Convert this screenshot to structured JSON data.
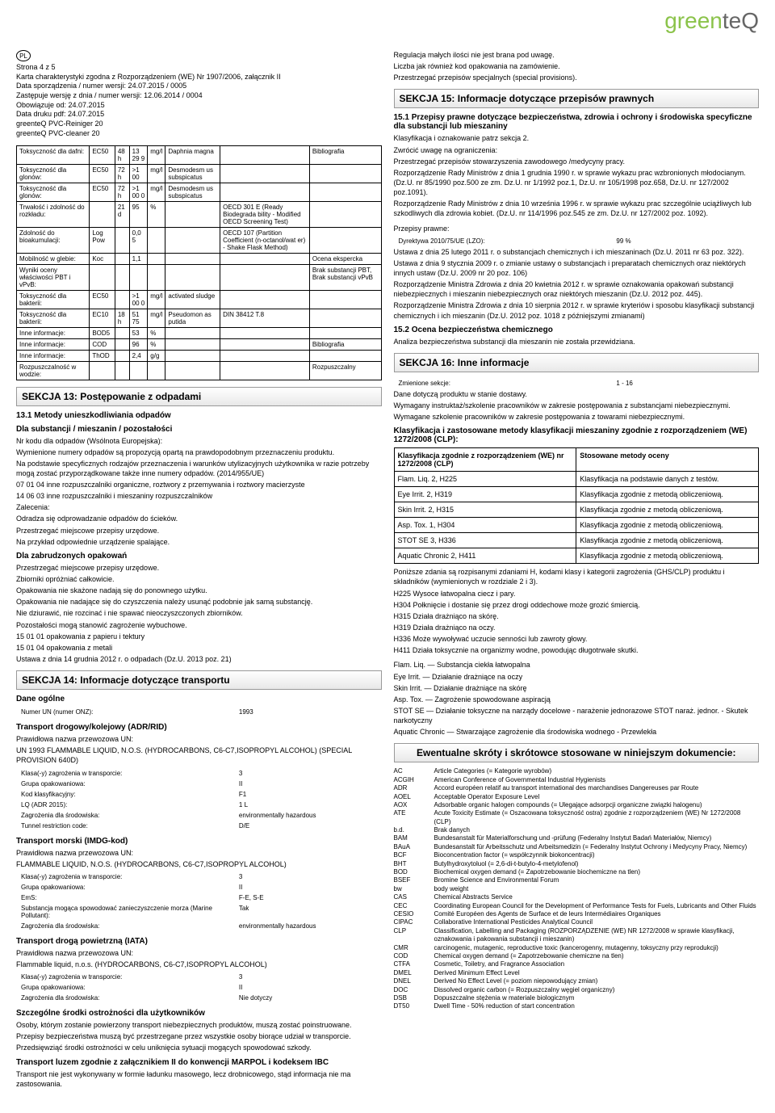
{
  "logo": {
    "green": "green",
    "teq": "teQ"
  },
  "meta": {
    "badge": "PL",
    "page": "Strona  4 z 5",
    "l1": "Karta charakterystyki zgodna z Rozporządzeniem (WE) Nr 1907/2006, załącznik II",
    "l2": "Data sporządzenia / numer wersji: 24.07.2015  / 0005",
    "l3": "Zastępuje wersję z dnia / numer wersji: 12.06.2014  / 0004",
    "l4": "Obowiązuje od: 24.07.2015",
    "l5": "Data druku pdf: 24.07.2015",
    "l6": "greenteQ PVC-Reiniger 20",
    "l7": "greenteQ PVC-cleaner 20"
  },
  "tox_rows": [
    [
      "Toksyczność dla dafni:",
      "EC50",
      "48 h",
      "13 29 9",
      "mg/l",
      "Daphnia magna",
      "",
      "Bibliografia"
    ],
    [
      "Toksyczność dla glonów:",
      "EC50",
      "72 h",
      ">1 00",
      "mg/l",
      "Desmodesm us subspicatus",
      "",
      ""
    ],
    [
      "Toksyczność dla glonów:",
      "EC50",
      "72 h",
      ">1 00 0",
      "mg/l",
      "Desmodesm us subspicatus",
      "",
      ""
    ],
    [
      "Trwałość i zdolność do rozkładu:",
      "",
      "21 d",
      "95",
      "%",
      "",
      "OECD 301 E (Ready Biodegrada bility - Modified OECD Screening Test)",
      ""
    ],
    [
      "Zdolność do bioakumulacji:",
      "Log Pow",
      "",
      "0,0 5",
      "",
      "",
      "OECD 107 (Partition Coefficient (n-octanol/wat er) - Shake Flask Method)",
      ""
    ],
    [
      "Mobilność w glebie:",
      "Koc",
      "",
      "1,1",
      "",
      "",
      "",
      "Ocena ekspercka"
    ],
    [
      "Wyniki oceny właściwości PBT i vPvB:",
      "",
      "",
      "",
      "",
      "",
      "",
      "Brak substancji PBT, Brak substancji vPvB"
    ],
    [
      "Toksyczność dla bakterii:",
      "EC50",
      "",
      ">1 00 0",
      "mg/l",
      "activated sludge",
      "",
      ""
    ],
    [
      "Toksyczność dla bakterii:",
      "EC10",
      "18 h",
      "51 75",
      "mg/l",
      "Pseudomon as putida",
      "DIN 38412 T.8",
      ""
    ],
    [
      "Inne informacje:",
      "BOD5",
      "",
      "53",
      "%",
      "",
      "",
      ""
    ],
    [
      "Inne informacje:",
      "COD",
      "",
      "96",
      "%",
      "",
      "",
      "Bibliografia"
    ],
    [
      "Inne informacje:",
      "ThOD",
      "",
      "2,4",
      "g/g",
      "",
      "",
      ""
    ],
    [
      "Rozpuszczalność w wodzie:",
      "",
      "",
      "",
      "",
      "",
      "",
      "Rozpuszczalny"
    ]
  ],
  "s13": {
    "hdr": "SEKCJA 13: Postępowanie z odpadami",
    "sub": "13.1 Metody unieszkodliwiania odpadów",
    "sub2": "Dla substancji / mieszanin / pozostałości",
    "lines": [
      "Nr kodu dla odpadów (Wsólnota Europejska):",
      "Wymienione numery odpadów są propozycją opartą na prawdopodobnym przeznaczeniu produktu.",
      "Na podstawie specyficznych rodzajów przeznaczenia i warunków utylizacyjnych użytkownika w razie potrzeby mogą zostać przyporządkowane także inne numery odpadów. (2014/955/UE)",
      "07 01 04 inne rozpuszczalniki organiczne, roztwory z przemywania i roztwory macierzyste",
      "14 06 03 inne rozpuszczalniki i mieszaniny rozpuszczalników",
      "Zalecenia:",
      "Odradza się odprowadzanie odpadów do ścieków.",
      "Przestrzegać miejscowe przepisy urzędowe.",
      "Na przykład odpowiednie urządzenie spalające."
    ],
    "sub3": "Dla zabrudzonych opakowań",
    "lines2": [
      "Przestrzegać miejscowe przepisy urzędowe.",
      "Zbiorniki opróżniać całkowicie.",
      "Opakowania nie skażone nadają się do ponownego użytku.",
      "Opakowania nie nadające się do czyszczenia należy usunąć podobnie jak samą substancję.",
      "Nie dziurawić, nie rozcinać i nie spawać nieoczyszczonych zbiorników.",
      "Pozostałości mogą stanowić zagrożenie wybuchowe.",
      "15 01 01 opakowania z papieru i tektury",
      "15 01 04 opakowania z metali",
      "",
      "Ustawa z dnia 14 grudnia 2012 r. o odpadach (Dz.U. 2013 poz. 21)"
    ]
  },
  "s14": {
    "hdr": "SEKCJA 14: Informacje dotyczące transportu",
    "sub_general": "Dane ogólne",
    "un_label": "Numer UN (numer ONZ):",
    "un_val": "1993",
    "adr_hdr": "Transport drogowy/kolejowy (ADR/RID)",
    "adr_name_label": "Prawidłowa nazwa przewozowa UN:",
    "adr_name": "UN 1993   FLAMMABLE LIQUID, N.O.S. (HYDROCARBONS, C6-C7,ISOPROPYL ALCOHOL) (SPECIAL PROVISION 640D)",
    "adr_rows": [
      [
        "Klasa(-y) zagrożenia w transporcie:",
        "3"
      ],
      [
        "Grupa opakowaniowa:",
        "II"
      ],
      [
        "Kod klasyfikacyjny:",
        "F1"
      ],
      [
        "LQ (ADR 2015):",
        "1 L"
      ],
      [
        "Zagrożenia dla środowiska:",
        "environmentally hazardous"
      ],
      [
        "Tunnel restriction code:",
        "D/E"
      ]
    ],
    "imdg_hdr": "Transport morski (IMDG-kod)",
    "imdg_name_label": "Prawidłowa nazwa przewozowa UN:",
    "imdg_name": "FLAMMABLE LIQUID, N.O.S. (HYDROCARBONS, C6-C7,ISOPROPYL ALCOHOL)",
    "imdg_rows": [
      [
        "Klasa(-y) zagrożenia w transporcie:",
        "3"
      ],
      [
        "Grupa opakowaniowa:",
        "II"
      ],
      [
        "EmS:",
        "F-E, S-E"
      ],
      [
        "Substancja mogąca spowodować zanieczyszczenie morza (Marine Pollutant):",
        "Tak"
      ],
      [
        "Zagrożenia dla środowiska:",
        "environmentally hazardous"
      ]
    ],
    "iata_hdr": "Transport drogą powietrzną (IATA)",
    "iata_name_label": "Prawidłowa nazwa przewozowa UN:",
    "iata_name": "Flammable liquid, n.o.s. (HYDROCARBONS, C6-C7,ISOPROPYL ALCOHOL)",
    "iata_rows": [
      [
        "Klasa(-y) zagrożenia w transporcie:",
        "3"
      ],
      [
        "Grupa opakowaniowa:",
        "II"
      ],
      [
        "Zagrożenia dla środowiska:",
        "Nie dotyczy"
      ]
    ],
    "special_hdr": "Szczególne środki ostrożności dla użytkowników",
    "special_lines": [
      "Osoby, którym zostanie powierzony transport niebezpiecznych produktów, muszą zostać poinstruowane.",
      "Przepisy bezpieczeństwa muszą być przestrzegane przez wszystkie osoby biorące udział w transporcie.",
      "Przedsięwziąć środki ostrożności w celu uniknięcia sytuacji mogących spowodować szkody."
    ],
    "marpol_hdr": "Transport luzem zgodnie z załącznikiem II do konwencji MARPOL i kodeksem IBC",
    "marpol_txt": "Transport nie jest wykonywany w formie ładunku masowego, lecz drobnicowego, stąd informacja nie ma zastosowania."
  },
  "right_intro": [
    "Regulacja małych ilości nie jest brana pod uwagę.",
    "Liczba jak również kod opakowania na zamówienie.",
    "Przestrzegać przepisów specjalnych (special provisions)."
  ],
  "s15": {
    "hdr": "SEKCJA 15: Informacje dotyczące przepisów prawnych",
    "sub1": "15.1 Przepisy prawne dotyczące bezpieczeństwa, zdrowia i ochrony i środowiska specyficzne dla substancji lub mieszaniny",
    "lines1": [
      "Klasyfikacja i oznakowanie patrz sekcja 2.",
      "Zwrócić uwagę na ograniczenia:",
      "Przestrzegać przepisów stowarzyszenia zawodowego /medycyny pracy.",
      "Rozporządzenie Rady Ministrów z dnia 1 grudnia 1990 r. w sprawie wykazu prac wzbronionych młodocianym. (Dz.U. nr 85/1990 poz.500 ze zm. Dz.U. nr 1/1992 poz.1, Dz.U. nr 105/1998 poz.658, Dz.U. nr 127/2002 poz.1091).",
      "Rozporządzenie Rady Ministrów z dnia 10 września 1996 r. w sprawie wykazu prac szczególnie uciążliwych lub szkodliwych dla zdrowia kobiet. (Dz.U. nr 114/1996 poz.545 ze zm. Dz.U. nr 127/2002 poz. 1092)."
    ],
    "przepisy_label": "Przepisy prawne:",
    "dyrektywa": "Dyrektywa 2010/75/UE (LZO):",
    "dyrektywa_val": "99 %",
    "lines2": [
      "Ustawa z dnia 25 lutego 2011 r. o substancjach chemicznych i ich mieszaninach (Dz.U. 2011 nr 63 poz. 322).",
      "Ustawa z dnia 9 stycznia 2009 r. o zmianie ustawy o substancjach i preparatach chemicznych oraz niektórych innych ustaw (Dz.U. 2009 nr 20 poz. 106)",
      "Rozporządzenie Ministra Zdrowia z dnia 20 kwietnia 2012 r. w sprawie oznakowania opakowań substancji niebezpiecznych i mieszanin niebezpiecznych oraz niektórych mieszanin (Dz.U. 2012 poz. 445).",
      "Rozporządzenie Ministra Zdrowia z dnia 10 sierpnia 2012 r. w sprawie kryteriów i sposobu klasyfikacji substancji chemicznych i ich mieszanin (Dz.U. 2012 poz. 1018 z późniejszymi zmianami)"
    ],
    "sub2": "15.2 Ocena bezpieczeństwa chemicznego",
    "txt2": "Analiza bezpieczeństwa substancji dla mieszanin nie została przewidziana."
  },
  "s16": {
    "hdr": "SEKCJA 16: Inne informacje",
    "sekcje_label": "Zmienione sekcje:",
    "sekcje_val": "1 - 16",
    "lines1": [
      "Dane dotyczą produktu w stanie dostawy.",
      "Wymagany instruktaż/szkolenie pracowników w zakresie postępowania z substancjami niebezpiecznymi.",
      "Wymagane szkolenie pracowników w zakresie postępowania z towarami niebezpiecznymi."
    ],
    "clp_sub": "Klasyfikacja i zastosowane metody klasyfikacji mieszaniny zgodnie z rozporządzeniem (WE) 1272/2008 (CLP):",
    "clp_hdr1": "Klasyfikacja zgodnie z rozporządzeniem (WE) nr 1272/2008 (CLP)",
    "clp_hdr2": "Stosowane metody oceny",
    "clp_rows": [
      [
        "Flam. Liq. 2, H225",
        "Klasyfikacja na podstawie danych z testów."
      ],
      [
        "Eye Irrit. 2, H319",
        "Klasyfikacja zgodnie z metodą obliczeniową."
      ],
      [
        "Skin Irrit. 2, H315",
        "Klasyfikacja zgodnie z metodą obliczeniową."
      ],
      [
        "Asp. Tox. 1, H304",
        "Klasyfikacja zgodnie z metodą obliczeniową."
      ],
      [
        "STOT SE 3, H336",
        "Klasyfikacja zgodnie z metodą obliczeniową."
      ],
      [
        "Aquatic Chronic 2, H411",
        "Klasyfikacja zgodnie z metodą obliczeniową."
      ]
    ],
    "post_clp": [
      "Poniższe zdania są rozpisanymi zdaniami H, kodami klasy i kategorii zagrożenia (GHS/CLP) produktu i składników (wymienionych w rozdziale 2 i 3).",
      "H225 Wysoce łatwopalna ciecz i pary.",
      "H304 Połknięcie i dostanie się przez drogi oddechowe może grozić śmiercią.",
      "H315 Działa drażniąco na skórę.",
      "H319 Działa drażniąco na oczy.",
      "H336 Może wywoływać uczucie senności lub zawroty głowy.",
      "H411 Działa toksycznie na organizmy wodne, powodując długotrwałe skutki."
    ],
    "defs": [
      "Flam. Liq. — Substancja ciekła łatwopalna",
      "Eye Irrit. — Działanie drażniące na oczy",
      "Skin Irrit. — Działanie drażniące na skórę",
      "Asp. Tox. — Zagrożenie spowodowane aspiracją",
      "STOT SE — Działanie toksyczne na narządy docelowe - narażenie jednorazowe STOT naraż. jednor. - Skutek narkotyczny",
      "Aquatic Chronic — Stwarzające zagrożenie dla środowiska wodnego - Przewlekła"
    ],
    "abbr_hdr": "Ewentualne skróty i skrótowce stosowane w niniejszym dokumencie:",
    "abbr": [
      [
        "AC",
        "Article Categories (= Kategorie wyrobów)"
      ],
      [
        "ACGIH",
        "American Conference of Governmental Industrial Hygienists"
      ],
      [
        "ADR",
        "Accord européen relatif au transport international des marchandises Dangereuses par Route"
      ],
      [
        "AOEL",
        "Acceptable Operator Exposure Level"
      ],
      [
        "AOX",
        "Adsorbable organic halogen compounds (= Ulegające adsorpcji organiczne związki halogenu)"
      ],
      [
        "ATE",
        "Acute Toxicity Estimate (= Oszacowana toksyczność ostra) zgodnie z rozporządzeniem (WE) Nr 1272/2008 (CLP)"
      ],
      [
        "b.d.",
        "Brak danych"
      ],
      [
        "BAM",
        "Bundesanstalt für Materialforschung und -prüfung (Federalny Instytut Badań Materiałów, Niemcy)"
      ],
      [
        "BAuA",
        "Bundesanstalt für Arbeitsschutz und Arbeitsmedizin (= Federalny Instytut Ochrony i Medycyny Pracy, Niemcy)"
      ],
      [
        "BCF",
        "Bioconcentration factor (= współczynnik biokoncentracji)"
      ],
      [
        "BHT",
        "Butylhydroxytoluol (= 2,6-di-t-butylo-4-metylofenol)"
      ],
      [
        "BOD",
        "Biochemical oxygen demand (= Zapotrzebowanie biochemiczne na tlen)"
      ],
      [
        "BSEF",
        "Bromine Science and Environmental Forum"
      ],
      [
        "bw",
        "body weight"
      ],
      [
        "CAS",
        "Chemical Abstracts Service"
      ],
      [
        "CEC",
        "Coordinating European Council for the Development of Performance Tests for Fuels, Lubricants and Other Fluids"
      ],
      [
        "CESIO",
        "Comité Européen des Agents de Surface et de leurs Intermédiaires Organiques"
      ],
      [
        "CIPAC",
        "Collaborative International Pesticides Analytical Council"
      ],
      [
        "CLP",
        "Classification, Labelling and Packaging (ROZPORZĄDZENIE (WE) NR 1272/2008 w sprawie klasyfikacji, oznakowania i pakowania substancji i mieszanin)"
      ],
      [
        "CMR",
        "carcinogenic, mutagenic, reproductive toxic (kancerogenny, mutagenny, toksyczny przy reprodukcji)"
      ],
      [
        "COD",
        "Chemical oxygen demand (= Zapotrzebowanie chemiczne na tlen)"
      ],
      [
        "CTFA",
        "Cosmetic, Toiletry, and Fragrance Association"
      ],
      [
        "DMEL",
        "Derived Minimum Effect Level"
      ],
      [
        "DNEL",
        "Derived No Effect Level (= poziom niepowodujący zmian)"
      ],
      [
        "DOC",
        "Dissolved organic carbon (= Rozpuszczalny węgiel organiczny)"
      ],
      [
        "DSB",
        "Dopuszczalne stężenia w materiale biologicznym"
      ],
      [
        "DT50",
        "Dwell Time - 50% reduction of start concentration"
      ]
    ]
  }
}
